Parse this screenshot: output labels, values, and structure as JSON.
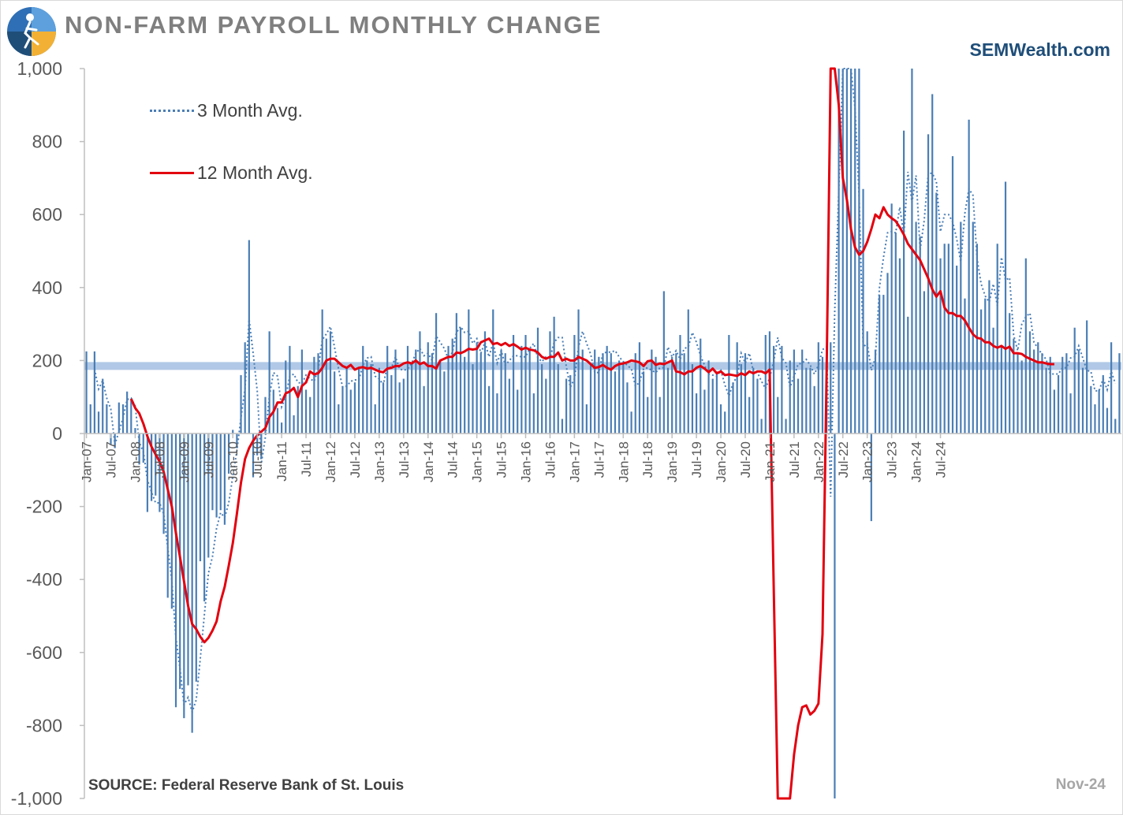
{
  "header": {
    "title": "NON-FARM PAYROLL MONTHLY CHANGE",
    "brand": "SEMWealth.com",
    "logo_icon": "runner-logo-icon"
  },
  "footer": {
    "source": "SOURCE:  Federal Reserve Bank of St. Louis",
    "date": "Nov-24"
  },
  "colors": {
    "bar": "#4a7eb5",
    "avg3": "#4a7eb5",
    "avg12": "#e3000f",
    "band": "#9dbbe0",
    "axis": "#bfbfbf",
    "title": "#7f7f7f",
    "brand": "#1f4e79"
  },
  "chart_data": {
    "type": "bar",
    "title": "NON-FARM PAYROLL MONTHLY CHANGE",
    "xlabel": "",
    "ylabel": "",
    "ylim": [
      -1000,
      1000
    ],
    "yticks": [
      -1000,
      -800,
      -600,
      -400,
      -200,
      0,
      200,
      400,
      600,
      800,
      1000
    ],
    "ytick_labels": [
      "-1,000",
      "-800",
      "-600",
      "-400",
      "-200",
      "0",
      "200",
      "400",
      "600",
      "800",
      "1,000"
    ],
    "grid": false,
    "legend_position": "top-left",
    "reference_band": 185,
    "start_month": "Jan-07",
    "x_tick_labels": [
      "Jan-07",
      "Jul-07",
      "Jan-08",
      "Jul-08",
      "Jan-09",
      "Jul-09",
      "Jan-10",
      "Jul-10",
      "Jan-11",
      "Jul-11",
      "Jan-12",
      "Jul-12",
      "Jan-13",
      "Jul-13",
      "Jan-14",
      "Jul-14",
      "Jan-15",
      "Jul-15",
      "Jan-16",
      "Jul-16",
      "Jan-17",
      "Jul-17",
      "Jan-18",
      "Jul-18",
      "Jan-19",
      "Jul-19",
      "Jan-20",
      "Jul-20",
      "Jan-21",
      "Jul-21",
      "Jan-22",
      "Jul-22",
      "Jan-23",
      "Jul-23",
      "Jan-24",
      "Jul-24"
    ],
    "series": [
      {
        "name": "Monthly Change",
        "values": [
          225,
          80,
          225,
          60,
          150,
          80,
          -30,
          -40,
          85,
          80,
          115,
          95,
          15,
          -85,
          -80,
          -215,
          -185,
          -170,
          -215,
          -275,
          -450,
          -480,
          -750,
          -700,
          -780,
          -690,
          -820,
          -680,
          -350,
          -460,
          -340,
          -210,
          -230,
          -210,
          -250,
          -110,
          10,
          -40,
          160,
          250,
          530,
          -120,
          -60,
          -70,
          100,
          280,
          120,
          70,
          30,
          200,
          240,
          50,
          130,
          230,
          120,
          100,
          210,
          220,
          340,
          260,
          280,
          170,
          80,
          130,
          180,
          120,
          140,
          180,
          240,
          200,
          190,
          80,
          180,
          140,
          240,
          160,
          230,
          140,
          150,
          240,
          190,
          230,
          280,
          130,
          250,
          220,
          330,
          200,
          170,
          240,
          260,
          330,
          290,
          210,
          340,
          190,
          250,
          220,
          280,
          130,
          340,
          110,
          230,
          220,
          150,
          270,
          120,
          240,
          270,
          230,
          110,
          290,
          190,
          150,
          280,
          320,
          190,
          40,
          150,
          160,
          270,
          340,
          230,
          80,
          190,
          230,
          210,
          220,
          240,
          220,
          170,
          200,
          190,
          140,
          60,
          220,
          250,
          170,
          100,
          230,
          210,
          100,
          390,
          180,
          210,
          220,
          270,
          220,
          340,
          190,
          110,
          260,
          120,
          200,
          150,
          170,
          80,
          60,
          270,
          140,
          250,
          190,
          220,
          100,
          180,
          150,
          40,
          270,
          280,
          240,
          100,
          240,
          40,
          200,
          230,
          150,
          230,
          180,
          180,
          130,
          250,
          210,
          230,
          250,
          -1000,
          1000,
          1000,
          1000,
          1000,
          1000,
          1000,
          670,
          280,
          -240,
          230,
          380,
          380,
          440,
          630,
          550,
          480,
          830,
          320,
          1000,
          580,
          540,
          390,
          820,
          930,
          660,
          480,
          520,
          520,
          760,
          460,
          580,
          370,
          860,
          580,
          520,
          340,
          370,
          420,
          290,
          520,
          240,
          690,
          330,
          260,
          220,
          200,
          480,
          280,
          230,
          250,
          220,
          180,
          210,
          120,
          160,
          210,
          220,
          110,
          290,
          230,
          180,
          310,
          130,
          80,
          120,
          160,
          70,
          250,
          40,
          220
        ],
        "color": "#4a7eb5"
      },
      {
        "name": "3 Month Avg.",
        "values": [
          null,
          null,
          177,
          122,
          145,
          97,
          67,
          -30,
          5,
          42,
          93,
          97,
          75,
          -25,
          -50,
          -127,
          -160,
          -190,
          -190,
          -220,
          -313,
          -402,
          -560,
          -643,
          -743,
          -723,
          -763,
          -730,
          -617,
          -497,
          -383,
          -337,
          -260,
          -217,
          -230,
          -190,
          -117,
          -47,
          43,
          123,
          313,
          220,
          117,
          -83,
          -10,
          103,
          167,
          157,
          73,
          100,
          157,
          163,
          140,
          137,
          160,
          150,
          143,
          177,
          257,
          273,
          293,
          237,
          177,
          127,
          130,
          143,
          147,
          147,
          187,
          207,
          210,
          157,
          150,
          133,
          187,
          180,
          210,
          177,
          173,
          177,
          193,
          220,
          233,
          213,
          220,
          200,
          267,
          250,
          233,
          203,
          223,
          277,
          293,
          277,
          280,
          247,
          260,
          220,
          250,
          210,
          250,
          193,
          227,
          187,
          200,
          213,
          213,
          210,
          210,
          233,
          247,
          207,
          197,
          210,
          207,
          250,
          263,
          263,
          183,
          127,
          150,
          237,
          280,
          247,
          217,
          167,
          167,
          220,
          223,
          223,
          227,
          210,
          197,
          187,
          177,
          130,
          140,
          177,
          180,
          173,
          167,
          180,
          180,
          237,
          210,
          227,
          203,
          233,
          237,
          277,
          250,
          213,
          187,
          163,
          160,
          157,
          173,
          133,
          103,
          137,
          157,
          220,
          193,
          220,
          170,
          167,
          143,
          123,
          153,
          197,
          263,
          207,
          193,
          127,
          157,
          190,
          193,
          203,
          187,
          163,
          187,
          230,
          237,
          -173,
          333,
          667,
          1000,
          1000,
          1000,
          890,
          650,
          237,
          247,
          173,
          207,
          400,
          483,
          550,
          553,
          550,
          620,
          543,
          717,
          633,
          707,
          503,
          583,
          713,
          713,
          690,
          553,
          600,
          600,
          580,
          533,
          470,
          603,
          670,
          653,
          480,
          410,
          377,
          360,
          410,
          350,
          483,
          420,
          427,
          270,
          227,
          300,
          320,
          330,
          250,
          233,
          217,
          203,
          163,
          163,
          163,
          180,
          180,
          207,
          210,
          240,
          207,
          173,
          170,
          117,
          117,
          150,
          120,
          170,
          137
        ],
        "color": "#4a7eb5"
      },
      {
        "name": "12 Month Avg.",
        "values": [
          null,
          null,
          null,
          null,
          null,
          null,
          null,
          null,
          null,
          null,
          null,
          95,
          70,
          55,
          27,
          -8,
          -36,
          -57,
          -77,
          -105,
          -153,
          -200,
          -272,
          -338,
          -405,
          -472,
          -522,
          -536,
          -557,
          -572,
          -560,
          -540,
          -515,
          -460,
          -420,
          -362,
          -300,
          -220,
          -135,
          -70,
          -40,
          -20,
          -5,
          5,
          15,
          45,
          60,
          85,
          85,
          110,
          115,
          125,
          100,
          130,
          140,
          170,
          162,
          165,
          180,
          200,
          205,
          205,
          195,
          185,
          180,
          188,
          175,
          180,
          182,
          178,
          180,
          175,
          170,
          168,
          178,
          180,
          185,
          185,
          192,
          195,
          192,
          200,
          190,
          195,
          185,
          185,
          178,
          200,
          205,
          210,
          210,
          222,
          220,
          225,
          232,
          230,
          232,
          250,
          255,
          260,
          245,
          248,
          242,
          248,
          240,
          245,
          238,
          230,
          235,
          230,
          228,
          222,
          210,
          205,
          210,
          210,
          222,
          200,
          205,
          200,
          200,
          210,
          205,
          200,
          190,
          180,
          182,
          188,
          180,
          175,
          185,
          190,
          192,
          195,
          200,
          198,
          195,
          185,
          198,
          200,
          188,
          192,
          190,
          195,
          200,
          170,
          168,
          162,
          170,
          170,
          180,
          185,
          178,
          168,
          178,
          165,
          170,
          160,
          162,
          160,
          158,
          165,
          160,
          170,
          165,
          170,
          170,
          165,
          175,
          -420,
          -1000,
          -1000,
          -1000,
          -1000,
          -880,
          -800,
          -750,
          -745,
          -770,
          -760,
          -740,
          -550,
          160,
          1000,
          1000,
          900,
          700,
          640,
          560,
          510,
          490,
          500,
          525,
          560,
          600,
          590,
          620,
          600,
          590,
          582,
          565,
          545,
          520,
          505,
          490,
          475,
          450,
          425,
          395,
          375,
          390,
          345,
          330,
          330,
          322,
          322,
          310,
          290,
          272,
          262,
          260,
          250,
          250,
          240,
          235,
          240,
          232,
          238,
          220,
          220,
          218,
          210,
          205,
          200,
          195,
          195,
          192,
          190,
          190
        ]
      }
    ]
  }
}
